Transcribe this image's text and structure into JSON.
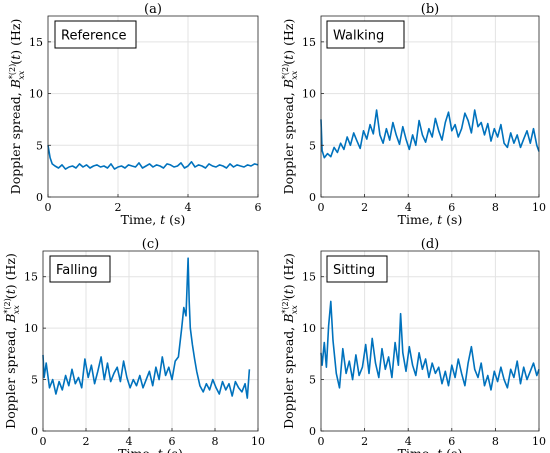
{
  "chart_data": [
    {
      "type": "line",
      "panel_title": "(a)",
      "legend_label": "Reference",
      "xlabel": "Time, t (s)",
      "ylabel": "Doppler spread, B*(2)xx(t) (Hz)",
      "xlim": [
        0,
        6
      ],
      "ylim": [
        0,
        17.5
      ],
      "xticks": [
        0,
        2,
        4,
        6
      ],
      "yticks": [
        0,
        5,
        10,
        15
      ],
      "grid": true,
      "line_color": "#0072BD",
      "x": [
        0,
        0.06,
        0.12,
        0.2,
        0.3,
        0.4,
        0.5,
        0.6,
        0.7,
        0.8,
        0.9,
        1.0,
        1.1,
        1.2,
        1.3,
        1.4,
        1.5,
        1.6,
        1.7,
        1.8,
        1.9,
        2.0,
        2.1,
        2.2,
        2.3,
        2.4,
        2.5,
        2.6,
        2.7,
        2.8,
        2.9,
        3.0,
        3.1,
        3.2,
        3.3,
        3.4,
        3.5,
        3.6,
        3.7,
        3.8,
        3.9,
        4.0,
        4.1,
        4.2,
        4.3,
        4.4,
        4.5,
        4.6,
        4.7,
        4.8,
        4.9,
        5.0,
        5.1,
        5.2,
        5.3,
        5.4,
        5.5,
        5.6,
        5.7,
        5.8,
        5.9,
        6.0
      ],
      "y": [
        5.0,
        3.8,
        3.2,
        3.0,
        2.8,
        3.1,
        2.7,
        2.9,
        3.0,
        2.8,
        3.2,
        2.9,
        3.1,
        2.8,
        3.0,
        3.1,
        2.9,
        3.0,
        2.8,
        3.2,
        2.7,
        2.9,
        3.0,
        2.8,
        3.1,
        3.0,
        2.9,
        3.3,
        2.8,
        3.0,
        3.2,
        2.9,
        3.1,
        3.0,
        2.8,
        3.2,
        3.1,
        2.9,
        3.0,
        3.3,
        2.8,
        3.0,
        3.4,
        2.9,
        3.1,
        3.0,
        2.8,
        3.2,
        3.0,
        2.9,
        3.1,
        3.0,
        2.8,
        3.2,
        2.9,
        3.1,
        3.0,
        2.9,
        3.1,
        3.0,
        3.2,
        3.1
      ]
    },
    {
      "type": "line",
      "panel_title": "(b)",
      "legend_label": "Walking",
      "xlabel": "Time, t (s)",
      "ylabel": "Doppler spread, B*(2)xx(t) (Hz)",
      "xlim": [
        0,
        10
      ],
      "ylim": [
        0,
        17.5
      ],
      "xticks": [
        0,
        2,
        4,
        6,
        8,
        10
      ],
      "yticks": [
        0,
        5,
        10,
        15
      ],
      "grid": true,
      "line_color": "#0072BD",
      "x": [
        0,
        0.05,
        0.15,
        0.3,
        0.45,
        0.6,
        0.75,
        0.9,
        1.05,
        1.2,
        1.35,
        1.5,
        1.65,
        1.8,
        1.95,
        2.1,
        2.25,
        2.4,
        2.55,
        2.7,
        2.85,
        3.0,
        3.15,
        3.3,
        3.45,
        3.6,
        3.75,
        3.9,
        4.05,
        4.2,
        4.35,
        4.5,
        4.65,
        4.8,
        4.95,
        5.1,
        5.25,
        5.4,
        5.55,
        5.7,
        5.85,
        6.0,
        6.15,
        6.3,
        6.45,
        6.6,
        6.75,
        6.9,
        7.05,
        7.2,
        7.35,
        7.5,
        7.65,
        7.8,
        7.95,
        8.1,
        8.25,
        8.4,
        8.55,
        8.7,
        8.85,
        9.0,
        9.15,
        9.3,
        9.45,
        9.6,
        9.75,
        9.9,
        10.0
      ],
      "y": [
        7.5,
        4.5,
        3.8,
        4.2,
        3.9,
        4.8,
        4.3,
        5.2,
        4.6,
        5.8,
        5.0,
        6.2,
        5.4,
        4.7,
        6.4,
        5.6,
        7.0,
        6.1,
        8.4,
        6.0,
        5.2,
        6.6,
        5.5,
        7.2,
        6.0,
        5.1,
        6.8,
        5.6,
        4.6,
        6.0,
        5.0,
        7.4,
        6.0,
        5.3,
        6.6,
        5.8,
        7.6,
        6.4,
        5.5,
        7.2,
        8.2,
        6.4,
        7.0,
        5.8,
        6.6,
        8.1,
        7.4,
        6.2,
        8.4,
        6.8,
        7.2,
        6.0,
        7.1,
        5.4,
        6.6,
        5.8,
        7.0,
        5.2,
        4.8,
        6.2,
        5.2,
        6.0,
        4.8,
        5.6,
        6.4,
        5.2,
        6.6,
        5.0,
        4.4
      ]
    },
    {
      "type": "line",
      "panel_title": "(c)",
      "legend_label": "Falling",
      "xlabel": "Time, t (s)",
      "ylabel": "Doppler spread, B*(2)xx(t) (Hz)",
      "xlim": [
        0,
        10
      ],
      "ylim": [
        0,
        17.5
      ],
      "xticks": [
        0,
        2,
        4,
        6,
        8,
        10
      ],
      "yticks": [
        0,
        5,
        10,
        15
      ],
      "grid": true,
      "line_color": "#0072BD",
      "x": [
        0,
        0.05,
        0.15,
        0.3,
        0.45,
        0.6,
        0.75,
        0.9,
        1.05,
        1.2,
        1.35,
        1.5,
        1.65,
        1.8,
        1.95,
        2.1,
        2.25,
        2.4,
        2.55,
        2.7,
        2.85,
        3.0,
        3.15,
        3.3,
        3.45,
        3.6,
        3.75,
        3.9,
        4.05,
        4.2,
        4.35,
        4.5,
        4.65,
        4.8,
        4.95,
        5.1,
        5.25,
        5.4,
        5.55,
        5.7,
        5.85,
        6.0,
        6.15,
        6.3,
        6.45,
        6.55,
        6.65,
        6.75,
        6.8,
        6.85,
        6.95,
        7.05,
        7.15,
        7.3,
        7.45,
        7.6,
        7.75,
        7.9,
        8.05,
        8.2,
        8.35,
        8.5,
        8.65,
        8.8,
        8.95,
        9.1,
        9.25,
        9.4,
        9.5,
        9.6
      ],
      "y": [
        7.4,
        5.2,
        6.6,
        4.2,
        5.0,
        3.6,
        4.8,
        4.0,
        5.4,
        4.4,
        6.0,
        4.6,
        5.2,
        4.2,
        7.0,
        5.2,
        6.4,
        4.6,
        5.8,
        7.2,
        5.0,
        6.6,
        4.8,
        5.6,
        6.2,
        4.8,
        6.8,
        5.2,
        4.2,
        5.0,
        4.4,
        5.4,
        4.2,
        5.0,
        5.8,
        4.4,
        6.2,
        5.0,
        7.2,
        5.4,
        6.2,
        5.0,
        6.8,
        7.2,
        10.0,
        12.0,
        11.2,
        16.8,
        12.6,
        10.0,
        8.4,
        7.0,
        5.8,
        4.4,
        3.8,
        4.6,
        4.0,
        5.0,
        4.2,
        3.6,
        4.8,
        4.0,
        4.6,
        3.4,
        4.8,
        4.2,
        3.8,
        4.6,
        3.2,
        6.0
      ]
    },
    {
      "type": "line",
      "panel_title": "(d)",
      "legend_label": "Sitting",
      "xlabel": "Time, t (s)",
      "ylabel": "Doppler spread, B*(2)xx(t) (Hz)",
      "xlim": [
        0,
        10
      ],
      "ylim": [
        0,
        17.5
      ],
      "xticks": [
        0,
        2,
        4,
        6,
        8,
        10
      ],
      "yticks": [
        0,
        5,
        10,
        15
      ],
      "grid": true,
      "line_color": "#0072BD",
      "x": [
        0,
        0.05,
        0.15,
        0.25,
        0.35,
        0.45,
        0.55,
        0.7,
        0.85,
        1.0,
        1.15,
        1.3,
        1.45,
        1.6,
        1.75,
        1.9,
        2.05,
        2.2,
        2.35,
        2.5,
        2.65,
        2.8,
        2.95,
        3.1,
        3.25,
        3.4,
        3.55,
        3.65,
        3.75,
        3.9,
        4.05,
        4.2,
        4.35,
        4.5,
        4.65,
        4.8,
        4.95,
        5.1,
        5.25,
        5.4,
        5.55,
        5.7,
        5.85,
        6.0,
        6.15,
        6.3,
        6.45,
        6.6,
        6.75,
        6.9,
        7.05,
        7.2,
        7.35,
        7.5,
        7.65,
        7.8,
        7.95,
        8.1,
        8.25,
        8.4,
        8.55,
        8.7,
        8.85,
        9.0,
        9.15,
        9.3,
        9.45,
        9.6,
        9.75,
        9.9,
        10.0
      ],
      "y": [
        7.6,
        6.4,
        8.6,
        6.2,
        10.2,
        12.6,
        8.8,
        5.6,
        4.2,
        8.0,
        5.6,
        6.8,
        5.0,
        7.4,
        5.4,
        6.2,
        8.4,
        5.6,
        9.0,
        6.6,
        5.2,
        8.0,
        6.0,
        7.2,
        5.2,
        8.6,
        6.4,
        11.4,
        7.6,
        5.8,
        8.2,
        6.4,
        5.4,
        7.6,
        6.0,
        7.0,
        5.2,
        6.6,
        5.6,
        6.2,
        4.6,
        5.8,
        4.4,
        6.4,
        5.2,
        7.0,
        5.6,
        4.4,
        6.6,
        8.2,
        6.0,
        5.2,
        6.6,
        4.4,
        5.4,
        4.0,
        5.8,
        4.8,
        6.2,
        5.0,
        4.2,
        6.0,
        5.2,
        6.8,
        4.6,
        6.2,
        5.0,
        5.8,
        6.6,
        5.4,
        6.0
      ]
    }
  ]
}
